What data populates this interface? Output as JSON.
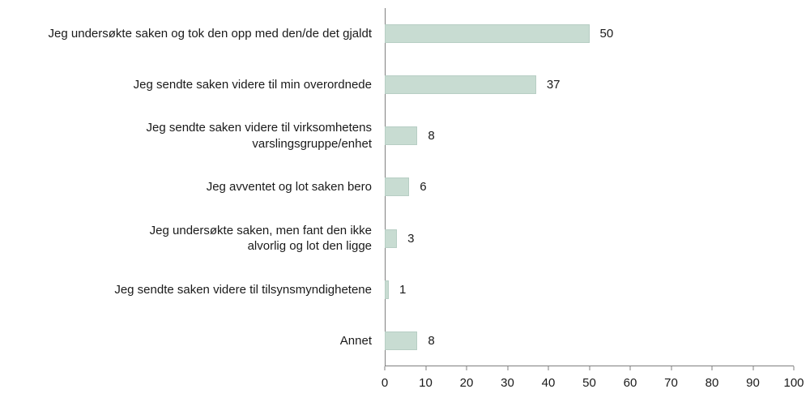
{
  "chart_data": {
    "type": "bar",
    "orientation": "horizontal",
    "title": "",
    "xlabel": "",
    "ylabel": "",
    "categories": [
      "Jeg undersøkte saken og tok den opp med den/de det gjaldt",
      "Jeg sendte saken videre til min overordnede",
      "Jeg sendte saken videre til virksomhetens varslingsgruppe/enhet",
      "Jeg avventet og lot saken bero",
      "Jeg undersøkte saken, men fant den ikke alvorlig og lot den ligge",
      "Jeg sendte saken videre til tilsynsmyndighetene",
      "Annet"
    ],
    "category_lines": [
      [
        "Jeg undersøkte saken og tok den opp med den/de det gjaldt"
      ],
      [
        "Jeg sendte saken videre til min overordnede"
      ],
      [
        "Jeg sendte saken videre til virksomhetens",
        "varslingsgruppe/enhet"
      ],
      [
        "Jeg avventet og lot saken bero"
      ],
      [
        "Jeg undersøkte saken, men fant den ikke",
        "alvorlig og lot den ligge"
      ],
      [
        "Jeg sendte saken videre til tilsynsmyndighetene"
      ],
      [
        "Annet"
      ]
    ],
    "values": [
      50,
      37,
      8,
      6,
      3,
      1,
      8
    ],
    "xlim": [
      0,
      100
    ],
    "xticks": [
      0,
      10,
      20,
      30,
      40,
      50,
      60,
      70,
      80,
      90,
      100
    ],
    "grid": false,
    "legend": false,
    "colors": {
      "bar": "#c8dcd2",
      "bar_border": "#b7cec4",
      "axis": "#7f7f7f",
      "text": "#1a1a1a"
    }
  }
}
